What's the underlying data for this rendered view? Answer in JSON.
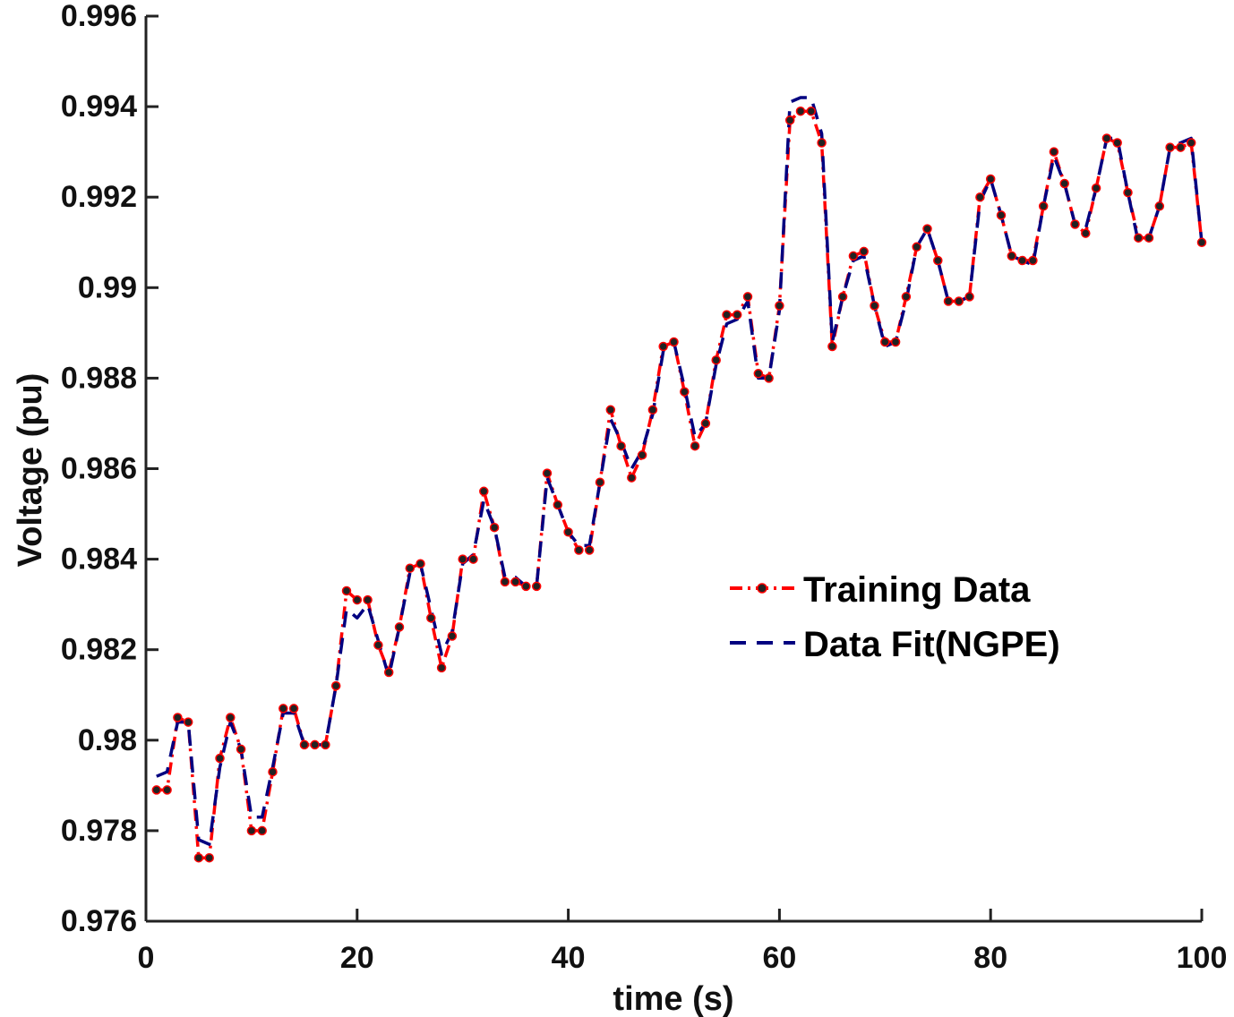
{
  "chart_data": {
    "type": "line",
    "title": "",
    "xlabel": "time (s)",
    "ylabel": "Voltage (pu)",
    "xlim": [
      0,
      100
    ],
    "ylim": [
      0.976,
      0.996
    ],
    "xticks": [
      0,
      20,
      40,
      60,
      80,
      100
    ],
    "xtick_labels": [
      "0",
      "20",
      "40",
      "60",
      "80",
      "100"
    ],
    "yticks": [
      0.976,
      0.978,
      0.98,
      0.982,
      0.984,
      0.986,
      0.988,
      0.99,
      0.992,
      0.994,
      0.996
    ],
    "ytick_labels": [
      "0.976",
      "0.978",
      "0.98",
      "0.982",
      "0.984",
      "0.986",
      "0.988",
      "0.99",
      "0.992",
      "0.994",
      "0.996"
    ],
    "grid": false,
    "legend_position": "center-right",
    "x": [
      1,
      2,
      3,
      4,
      5,
      6,
      7,
      8,
      9,
      10,
      11,
      12,
      13,
      14,
      15,
      16,
      17,
      18,
      19,
      20,
      21,
      22,
      23,
      24,
      25,
      26,
      27,
      28,
      29,
      30,
      31,
      32,
      33,
      34,
      35,
      36,
      37,
      38,
      39,
      40,
      41,
      42,
      43,
      44,
      45,
      46,
      47,
      48,
      49,
      50,
      51,
      52,
      53,
      54,
      55,
      56,
      57,
      58,
      59,
      60,
      61,
      62,
      63,
      64,
      65,
      66,
      67,
      68,
      69,
      70,
      71,
      72,
      73,
      74,
      75,
      76,
      77,
      78,
      79,
      80,
      81,
      82,
      83,
      84,
      85,
      86,
      87,
      88,
      89,
      90,
      91,
      92,
      93,
      94,
      95,
      96,
      97,
      98,
      99,
      100
    ],
    "series": [
      {
        "name": "Training Data",
        "color": "#ff0000",
        "marker_color": "#222222",
        "style": "dash-dot",
        "values": [
          0.9789,
          0.9789,
          0.9805,
          0.9804,
          0.9774,
          0.9774,
          0.9796,
          0.9805,
          0.9798,
          0.978,
          0.978,
          0.9793,
          0.9807,
          0.9807,
          0.9799,
          0.9799,
          0.9799,
          0.9812,
          0.9833,
          0.9831,
          0.9831,
          0.9821,
          0.9815,
          0.9825,
          0.9838,
          0.9839,
          0.9827,
          0.9816,
          0.9823,
          0.984,
          0.984,
          0.9855,
          0.9847,
          0.9835,
          0.9835,
          0.9834,
          0.9834,
          0.9859,
          0.9852,
          0.9846,
          0.9842,
          0.9842,
          0.9857,
          0.9873,
          0.9865,
          0.9858,
          0.9863,
          0.9873,
          0.9887,
          0.9888,
          0.9877,
          0.9865,
          0.987,
          0.9884,
          0.9894,
          0.9894,
          0.9898,
          0.9881,
          0.988,
          0.9896,
          0.9937,
          0.9939,
          0.9939,
          0.9932,
          0.9887,
          0.9898,
          0.9907,
          0.9908,
          0.9896,
          0.9888,
          0.9888,
          0.9898,
          0.9909,
          0.9913,
          0.9906,
          0.9897,
          0.9897,
          0.9898,
          0.992,
          0.9924,
          0.9916,
          0.9907,
          0.9906,
          0.9906,
          0.9918,
          0.993,
          0.9923,
          0.9914,
          0.9912,
          0.9922,
          0.9933,
          0.9932,
          0.9921,
          0.9911,
          0.9911,
          0.9918,
          0.9931,
          0.9931,
          0.9932,
          0.991
        ]
      },
      {
        "name": "Data Fit(NGPE)",
        "color": "#000080",
        "style": "dashed",
        "values": [
          0.9792,
          0.9793,
          0.9804,
          0.9804,
          0.9778,
          0.9777,
          0.9794,
          0.9804,
          0.9798,
          0.9783,
          0.9783,
          0.9794,
          0.9806,
          0.9806,
          0.9799,
          0.9799,
          0.9799,
          0.9812,
          0.9829,
          0.9827,
          0.983,
          0.9822,
          0.9814,
          0.9825,
          0.9837,
          0.9839,
          0.9829,
          0.9819,
          0.9824,
          0.9839,
          0.9841,
          0.9853,
          0.9847,
          0.9836,
          0.9836,
          0.9834,
          0.9834,
          0.9858,
          0.9852,
          0.9846,
          0.9843,
          0.9843,
          0.9857,
          0.9871,
          0.9866,
          0.986,
          0.9864,
          0.9872,
          0.9886,
          0.9888,
          0.9878,
          0.9867,
          0.987,
          0.9883,
          0.9892,
          0.9893,
          0.9897,
          0.988,
          0.988,
          0.9895,
          0.9941,
          0.9942,
          0.9942,
          0.9934,
          0.9888,
          0.9898,
          0.9906,
          0.9907,
          0.9896,
          0.9887,
          0.9888,
          0.9897,
          0.9909,
          0.9913,
          0.9906,
          0.9897,
          0.9897,
          0.9898,
          0.9919,
          0.9924,
          0.9916,
          0.9907,
          0.9906,
          0.9905,
          0.9918,
          0.9929,
          0.9923,
          0.9914,
          0.9913,
          0.9922,
          0.9933,
          0.9933,
          0.9921,
          0.991,
          0.9911,
          0.9918,
          0.9931,
          0.9932,
          0.9933,
          0.991
        ]
      }
    ]
  }
}
